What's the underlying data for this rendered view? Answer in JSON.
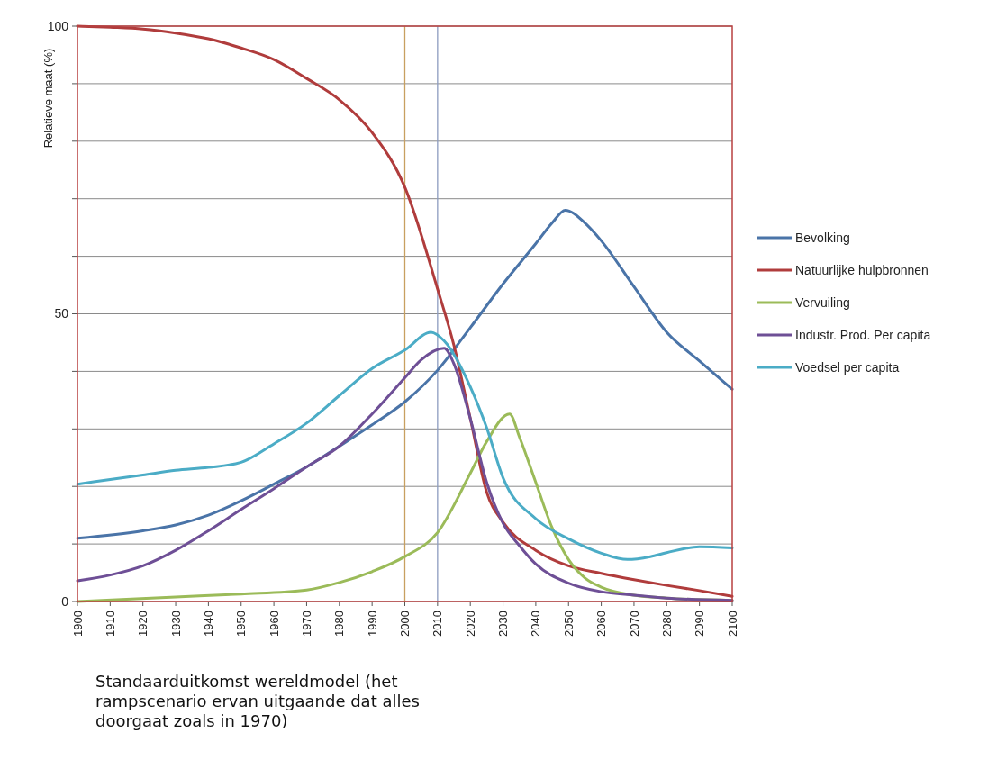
{
  "chart_data": {
    "type": "line",
    "title": "Standaarduitkomst wereldmodel (het rampscenario ervan uitgaande dat alles doorgaat zoals in 1970)",
    "ylabel": "Relatieve maat (%)",
    "xlim": [
      1900,
      2100
    ],
    "xticks": [
      1900,
      1910,
      1920,
      1930,
      1940,
      1950,
      1960,
      1970,
      1980,
      1990,
      2000,
      2010,
      2020,
      2030,
      2040,
      2050,
      2060,
      2070,
      2080,
      2090,
      2100
    ],
    "ylim": [
      0,
      100
    ],
    "yticks": [
      0,
      {
        "value": 10,
        "label": null
      },
      {
        "value": 20,
        "label": null
      },
      {
        "value": 30,
        "label": null
      },
      {
        "value": 40,
        "label": null
      },
      50,
      {
        "value": 60,
        "label": null
      },
      {
        "value": 70,
        "label": null
      },
      {
        "value": 80,
        "label": null
      },
      {
        "value": 90,
        "label": null
      },
      100
    ],
    "grid": "y",
    "legend": "right",
    "marker": "none",
    "line_style": "solid",
    "ref_lines": [
      {
        "axis": "x",
        "value": 2000,
        "color": "#c8a060"
      },
      {
        "axis": "x",
        "value": 2010,
        "color": "#8c9cc0"
      }
    ],
    "series": [
      {
        "name": "Bevolking",
        "color": "#4a74a8",
        "x": [
          1900,
          1920,
          1930,
          1940,
          1950,
          1960,
          1970,
          1980,
          1990,
          2000,
          2010,
          2020,
          2030,
          2040,
          2045,
          2049,
          2055,
          2060,
          2070,
          2080,
          2090,
          2100
        ],
        "values": [
          11,
          12.3,
          13.3,
          15,
          17.5,
          20.4,
          23.4,
          27,
          30.7,
          34.7,
          40.2,
          47.6,
          55.2,
          62.2,
          65.8,
          68,
          65.8,
          62.7,
          54.7,
          46.8,
          41.8,
          36.9
        ]
      },
      {
        "name": "Natuurlijke hulpbronnen",
        "color": "#b03c3c",
        "x": [
          1900,
          1910,
          1920,
          1930,
          1940,
          1950,
          1960,
          1970,
          1980,
          1990,
          2000,
          2010,
          2015,
          2020,
          2025,
          2030,
          2040,
          2050,
          2060,
          2070,
          2080,
          2090,
          2100
        ],
        "values": [
          100,
          99.8,
          99.5,
          98.8,
          97.8,
          96.2,
          94.2,
          90.9,
          87.2,
          81.5,
          72,
          54.3,
          44.5,
          31.8,
          19,
          13.8,
          8.9,
          6.2,
          4.9,
          3.8,
          2.8,
          1.9,
          0.9
        ]
      },
      {
        "name": "Vervuiling",
        "color": "#9bbb59",
        "x": [
          1900,
          1930,
          1950,
          1970,
          1980,
          1990,
          2000,
          2010,
          2020,
          2025,
          2032,
          2035,
          2040,
          2045,
          2050,
          2055,
          2060,
          2070,
          2080,
          2100
        ],
        "values": [
          0,
          0.8,
          1.3,
          2,
          3.3,
          5.2,
          7.8,
          12,
          22.3,
          27.8,
          32.6,
          28.6,
          20.7,
          12.8,
          7.3,
          4.1,
          2.5,
          1.1,
          0.6,
          0.2
        ]
      },
      {
        "name": "Industr. Prod. Per capita",
        "color": "#6e4f96",
        "x": [
          1900,
          1910,
          1920,
          1930,
          1940,
          1950,
          1960,
          1970,
          1980,
          1990,
          2000,
          2005,
          2012,
          2015,
          2020,
          2025,
          2030,
          2035,
          2040,
          2050,
          2060,
          2070,
          2080,
          2100
        ],
        "values": [
          3.6,
          4.6,
          6.2,
          8.9,
          12.3,
          16,
          19.6,
          23.4,
          27,
          32.6,
          38.9,
          42,
          44,
          41.3,
          31.8,
          20.7,
          13.6,
          9.7,
          6.5,
          3.2,
          1.7,
          1.1,
          0.6,
          0.2
        ]
      },
      {
        "name": "Voedsel per capita",
        "color": "#4bacc6",
        "x": [
          1900,
          1910,
          1920,
          1930,
          1940,
          1950,
          1960,
          1970,
          1980,
          1990,
          2000,
          2008,
          2012,
          2020,
          2025,
          2030,
          2040,
          2050,
          2060,
          2068,
          2075,
          2080,
          2090,
          2100
        ],
        "values": [
          20.4,
          21.2,
          22,
          22.8,
          23.3,
          24.2,
          27.4,
          31,
          35.8,
          40.5,
          43.7,
          46.8,
          45.3,
          37.3,
          30.2,
          21.5,
          14.4,
          10.9,
          8.4,
          7.3,
          7.8,
          8.5,
          9.5,
          9.3
        ]
      }
    ]
  }
}
